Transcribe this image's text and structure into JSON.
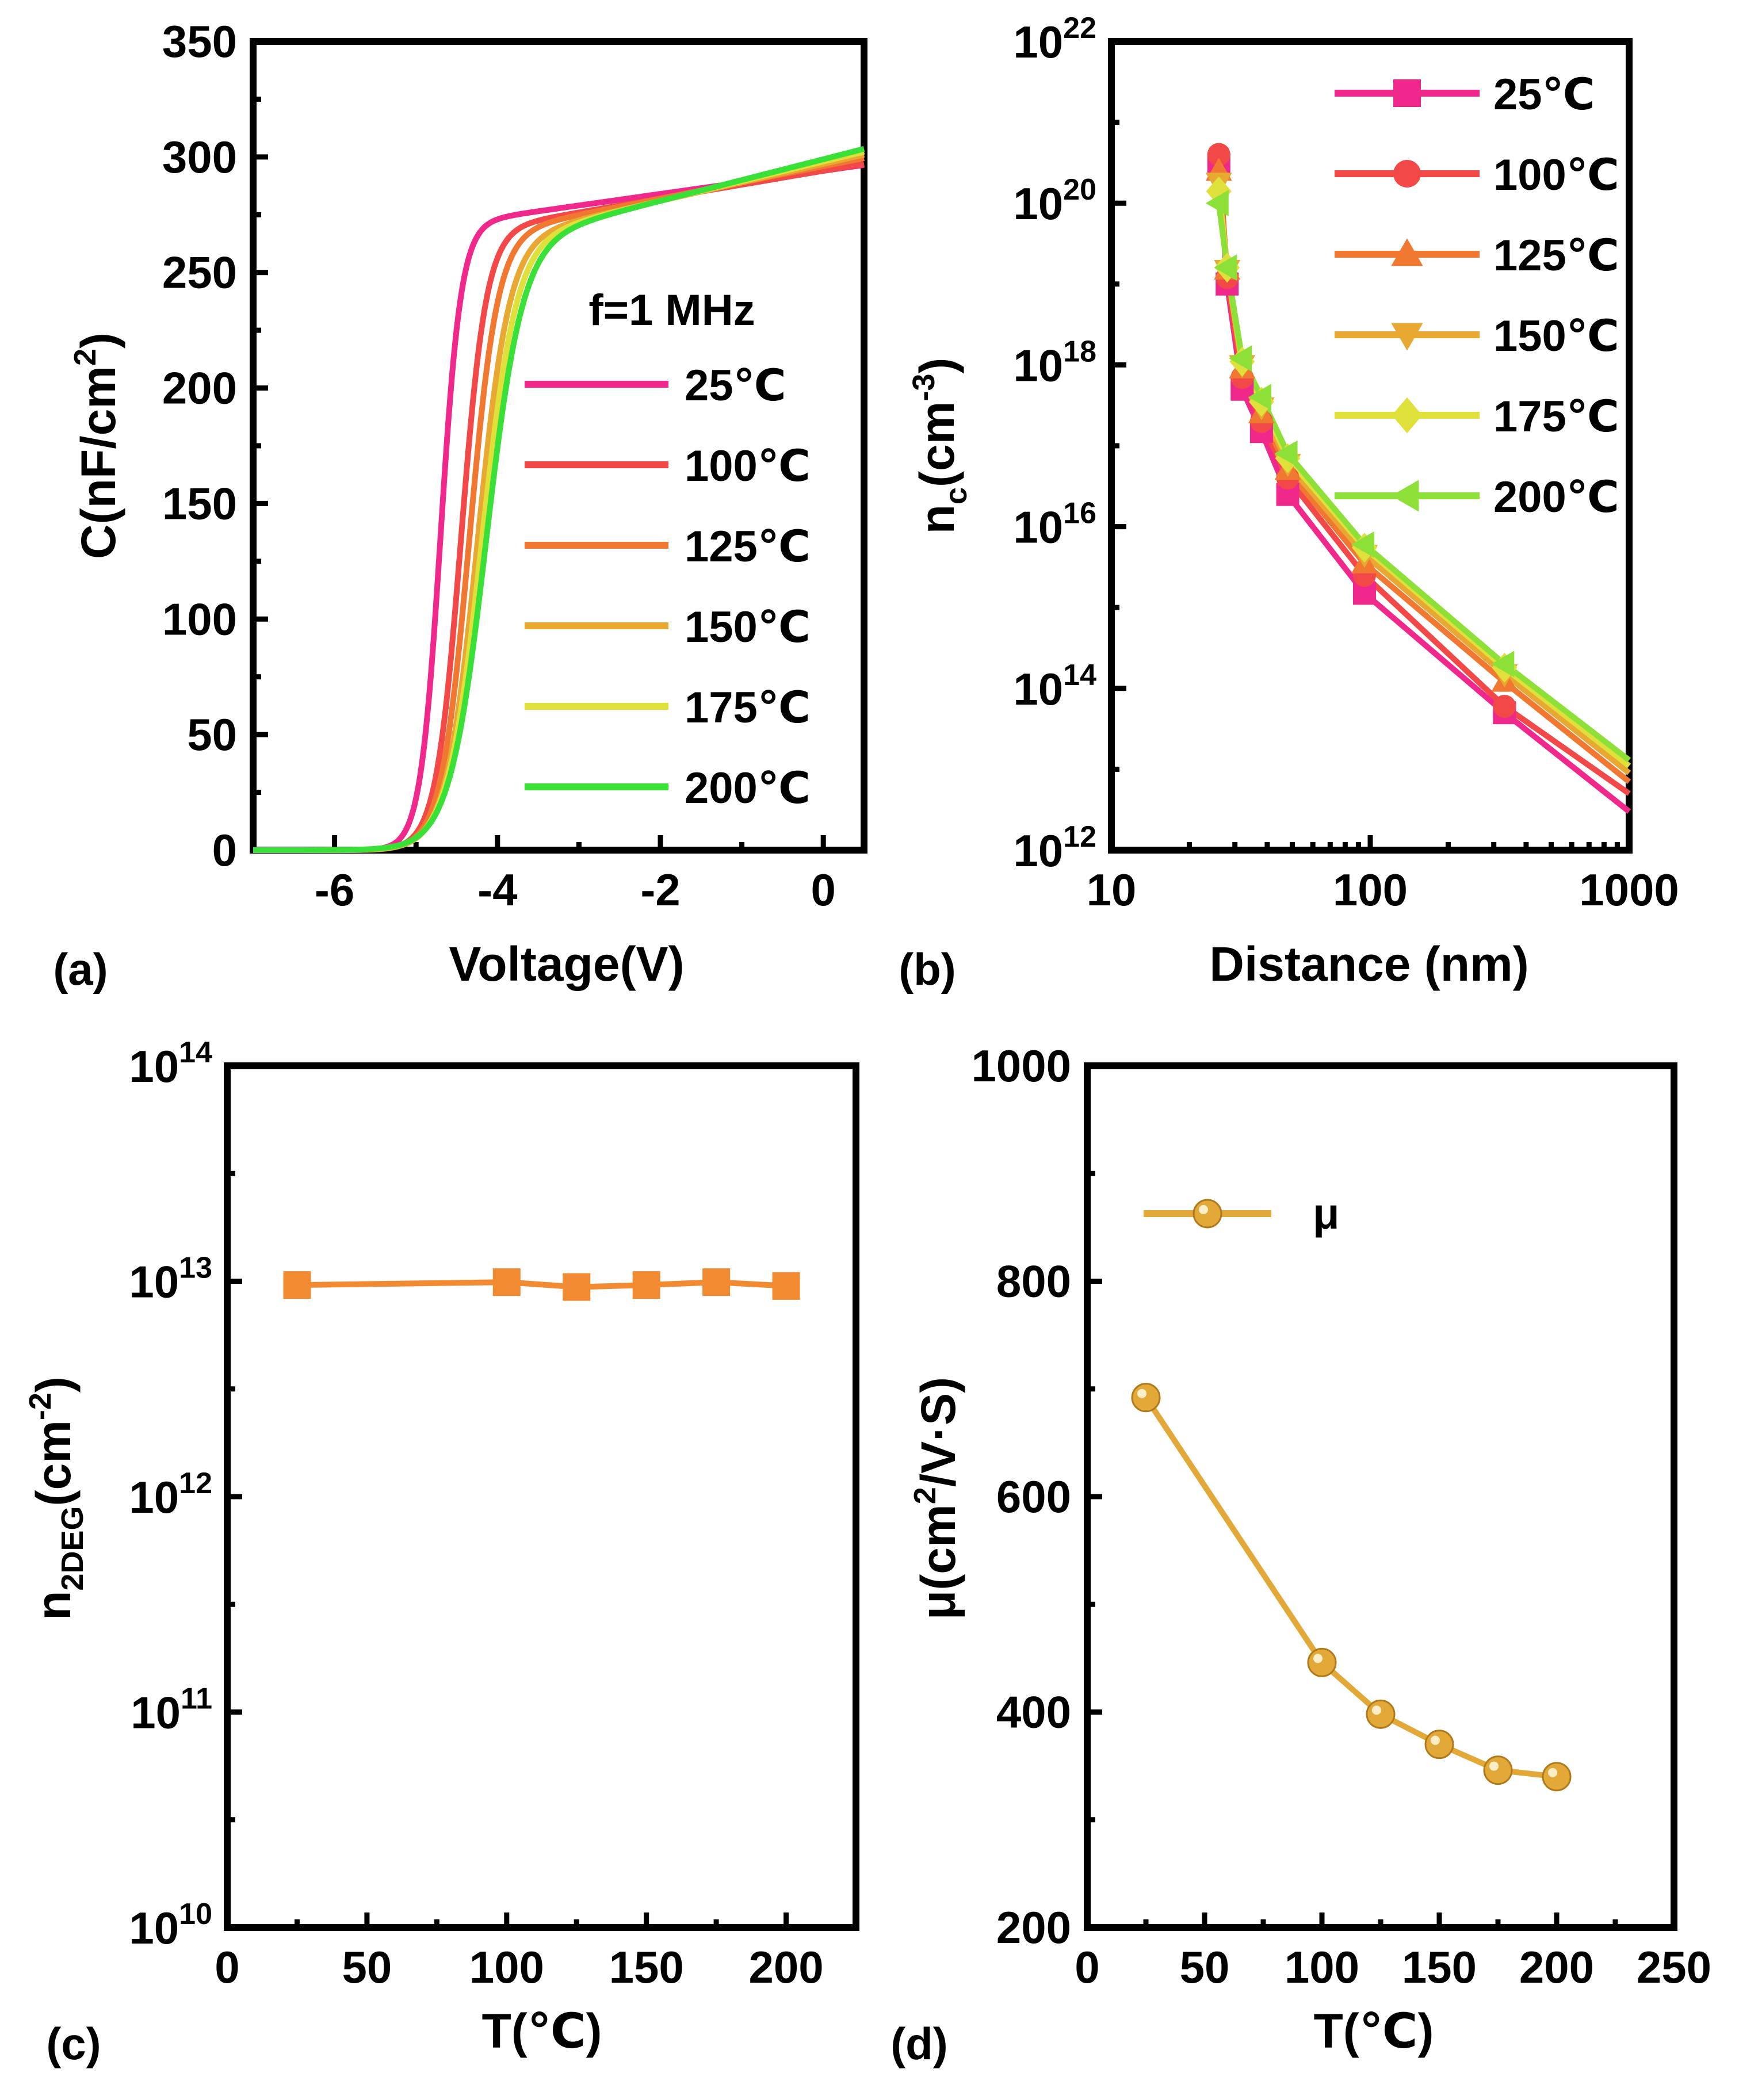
{
  "charts": [
    {
      "id": "a",
      "type": "line",
      "panel_label": "(a)",
      "xlabel": "Voltage(V)",
      "ylabel": "C(nF/cm",
      "ylabel_sup": "2",
      "ylabel_close": ")",
      "xlim": [
        -7,
        0.5
      ],
      "ylim": [
        0,
        350
      ],
      "xticks": [
        -6,
        -4,
        -2,
        0
      ],
      "yticks": [
        0,
        50,
        100,
        150,
        200,
        250,
        300,
        350
      ],
      "annotation": "f=1 MHz",
      "series": [
        {
          "name": "25℃",
          "color": "#f0288c",
          "vt": -4.7,
          "k": 8.0,
          "cmax": 294,
          "slope": 5.0
        },
        {
          "name": "100℃",
          "color": "#f24848",
          "vt": -4.45,
          "k": 6.5,
          "cmax": 294,
          "slope": 6.0
        },
        {
          "name": "125℃",
          "color": "#f07830",
          "vt": -4.35,
          "k": 5.8,
          "cmax": 296,
          "slope": 7.0
        },
        {
          "name": "150℃",
          "color": "#e8a832",
          "vt": -4.25,
          "k": 5.2,
          "cmax": 297,
          "slope": 8.0
        },
        {
          "name": "175℃",
          "color": "#e0e03a",
          "vt": -4.2,
          "k": 4.8,
          "cmax": 298,
          "slope": 8.5
        },
        {
          "name": "200℃",
          "color": "#38e038",
          "vt": -4.15,
          "k": 4.5,
          "cmax": 299,
          "slope": 9.0
        }
      ]
    },
    {
      "id": "b",
      "type": "line",
      "panel_label": "(b)",
      "xlabel": "Distance (nm)",
      "ylabel": "n",
      "ylabel_sub": "c",
      "ylabel_mid": "(cm",
      "ylabel_sup": "-3",
      "ylabel_close": ")",
      "xscale": "log",
      "yscale": "log",
      "xlim": [
        10,
        1000
      ],
      "ylim": [
        1000000000000.0,
        1e+22
      ],
      "xticks": [
        {
          "label": "10",
          "v": 10
        },
        {
          "label": "100",
          "v": 100
        },
        {
          "label": "1000",
          "v": 1000
        }
      ],
      "yticks": [
        {
          "base": "10",
          "exp": "12",
          "v": 1000000000000.0
        },
        {
          "base": "10",
          "exp": "14",
          "v": 100000000000000.0
        },
        {
          "base": "10",
          "exp": "16",
          "v": 1e+16
        },
        {
          "base": "10",
          "exp": "18",
          "v": 1e+18
        },
        {
          "base": "10",
          "exp": "20",
          "v": 1e+20
        },
        {
          "base": "10",
          "exp": "22",
          "v": 1e+22
        }
      ],
      "series": [
        {
          "name": "25℃",
          "color": "#f0288c",
          "marker": "square",
          "x": [
            26,
            28,
            32,
            38,
            48,
            95,
            330,
            1000
          ],
          "y": [
            3e+20,
            1e+19,
            5e+17,
            1.5e+17,
            2.5e+16,
            1500000000000000.0,
            50000000000000.0,
            3000000000000.0
          ]
        },
        {
          "name": "100℃",
          "color": "#f24848",
          "marker": "circle",
          "x": [
            26,
            28,
            32,
            38,
            48,
            95,
            330,
            1000
          ],
          "y": [
            4e+20,
            1.2e+19,
            7e+17,
            2e+17,
            4e+16,
            2500000000000000.0,
            60000000000000.0,
            5000000000000.0
          ]
        },
        {
          "name": "125℃",
          "color": "#f07830",
          "marker": "triangle-up",
          "x": [
            26,
            28,
            32,
            38,
            48,
            95,
            330,
            1000
          ],
          "y": [
            2.5e+20,
            1.5e+19,
            9e+17,
            2.5e+17,
            5e+16,
            3500000000000000.0,
            120000000000000.0,
            7000000000000.0
          ]
        },
        {
          "name": "150℃",
          "color": "#e8a832",
          "marker": "triangle-down",
          "x": [
            26,
            28,
            32,
            38,
            48,
            95,
            330,
            1000
          ],
          "y": [
            1.8e+20,
            1.5e+19,
            1e+18,
            3e+17,
            6e+16,
            4500000000000000.0,
            150000000000000.0,
            9000000000000.0
          ]
        },
        {
          "name": "175℃",
          "color": "#e0e03a",
          "marker": "diamond",
          "x": [
            26,
            28,
            32,
            38,
            48,
            95,
            330,
            1000
          ],
          "y": [
            1.4e+20,
            1.6e+19,
            1.1e+18,
            3.5e+17,
            7e+16,
            5500000000000000.0,
            180000000000000.0,
            11000000000000.0
          ]
        },
        {
          "name": "200℃",
          "color": "#8de038",
          "marker": "triangle-left",
          "x": [
            26,
            28,
            32,
            38,
            48,
            95,
            330,
            1000
          ],
          "y": [
            1e+20,
            1.6e+19,
            1.2e+18,
            4e+17,
            8e+16,
            6000000000000000.0,
            200000000000000.0,
            13000000000000.0
          ]
        }
      ]
    },
    {
      "id": "c",
      "type": "line",
      "panel_label": "(c)",
      "xlabel": "T(℃)",
      "ylabel": "n",
      "ylabel_sub": "2DEG",
      "ylabel_mid": "(cm",
      "ylabel_sup": "-2",
      "ylabel_close": ")",
      "yscale": "log",
      "xlim": [
        0,
        225
      ],
      "ylim": [
        10000000000.0,
        100000000000000.0
      ],
      "xticks": [
        0,
        50,
        100,
        150,
        200
      ],
      "yticks": [
        {
          "base": "10",
          "exp": "10",
          "v": 10000000000.0
        },
        {
          "base": "10",
          "exp": "11",
          "v": 100000000000.0
        },
        {
          "base": "10",
          "exp": "12",
          "v": 1000000000000.0
        },
        {
          "base": "10",
          "exp": "13",
          "v": 10000000000000.0
        },
        {
          "base": "10",
          "exp": "14",
          "v": 100000000000000.0
        }
      ],
      "series": [
        {
          "name": "n2DEG",
          "color": "#f28a32",
          "marker": "square",
          "x": [
            25,
            100,
            125,
            150,
            175,
            200
          ],
          "y": [
            9600000000000.0,
            9900000000000.0,
            9400000000000.0,
            9600000000000.0,
            9900000000000.0,
            9500000000000.0
          ]
        }
      ]
    },
    {
      "id": "d",
      "type": "line",
      "panel_label": "(d)",
      "xlabel": "T(℃)",
      "ylabel": "μ(cm",
      "ylabel_sup": "2",
      "ylabel_close": "/V·S)",
      "xlim": [
        0,
        250
      ],
      "ylim": [
        200,
        1000
      ],
      "xticks": [
        0,
        50,
        100,
        150,
        200,
        250
      ],
      "yticks": [
        200,
        400,
        600,
        800,
        1000
      ],
      "legend": "μ",
      "series": [
        {
          "name": "μ",
          "color": "#e2a838",
          "marker": "circle",
          "x": [
            25,
            100,
            125,
            150,
            175,
            200
          ],
          "y": [
            692,
            446,
            398,
            370,
            346,
            340
          ]
        }
      ]
    }
  ]
}
